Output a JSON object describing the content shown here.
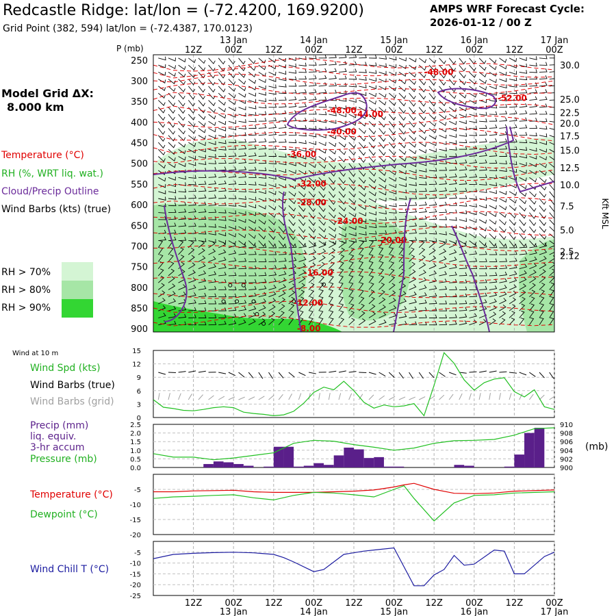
{
  "header": {
    "title": "Redcastle Ridge:  lat/lon = (-72.4200, 169.9200)",
    "grid_point": "Grid Point (382, 594) lat/lon = (-72.4387, 170.0123)",
    "cycle_line1": "AMPS WRF Forecast Cycle:",
    "cycle_line2": "2026-01-12 / 00  Z"
  },
  "model_grid": {
    "line1": "Model Grid ΔX:",
    "line2": "8.000 km"
  },
  "legend": {
    "temperature": "Temperature (°C)",
    "rh": "RH (%, WRT liq. wat.)",
    "cloud": "Cloud/Precip Outline",
    "wind_barbs": "Wind Barbs (kts) (true)",
    "rh70": "RH > 70%",
    "rh80": "RH > 80%",
    "rh90": "RH > 90%"
  },
  "colors": {
    "temperature": "#e00000",
    "rh": "#20c020",
    "cloud": "#6a2a9a",
    "barbs": "#000000",
    "barbs_grid": "#a0a0a0",
    "windchill": "#1a1aa0",
    "rh70": "#d4f5d4",
    "rh80": "#a6e6a6",
    "rh90": "#33d633",
    "grid": "#b0b0b0",
    "precip": "#5a1f8a"
  },
  "time_axis": {
    "labels": [
      "12Z",
      "00Z",
      "12Z",
      "00Z",
      "12Z",
      "00Z",
      "12Z",
      "00Z",
      "12Z",
      "00Z"
    ],
    "label_hours": [
      12,
      24,
      36,
      48,
      60,
      72,
      84,
      96,
      108,
      120
    ],
    "dates": [
      "13 Jan",
      "14 Jan",
      "15 Jan",
      "16 Jan",
      "17 Jan"
    ],
    "date_hours": [
      24,
      48,
      72,
      96,
      120
    ]
  },
  "chart_data": [
    {
      "type": "line",
      "panel": "cross-section",
      "title": "",
      "ylabel": "P (mb)",
      "ylabel_right": "Kft MSL",
      "y_ticks_left": [
        "250",
        "300",
        "350",
        "400",
        "450",
        "500",
        "550",
        "600",
        "650",
        "700",
        "750",
        "800",
        "850",
        "900"
      ],
      "y_ticks_left_values": [
        250,
        300,
        350,
        400,
        450,
        500,
        550,
        600,
        650,
        700,
        750,
        800,
        850,
        900
      ],
      "y_ticks_right": [
        "30.0",
        "25.0",
        "22.5",
        "20.0",
        "17.5",
        "15.0",
        "12.5",
        "10.0",
        "7.5",
        "5.0",
        "2.5",
        "2.12"
      ],
      "y_ticks_right_pressure": [
        262,
        345,
        377,
        403,
        433,
        468,
        510,
        552,
        603,
        661,
        713,
        723
      ],
      "x_range_hours": [
        0,
        120
      ],
      "pressure_range_mb": [
        237,
        908
      ],
      "temp_contours": [
        {
          "label": "-48.00",
          "hour": 81,
          "p": 279
        },
        {
          "label": "-52.00",
          "hour": 103,
          "p": 342
        },
        {
          "label": "-48.00",
          "hour": 52,
          "p": 372
        },
        {
          "label": "-44.00",
          "hour": 60,
          "p": 381
        },
        {
          "label": "-40.00",
          "hour": 52,
          "p": 423
        },
        {
          "label": "-36.00",
          "hour": 40,
          "p": 478
        },
        {
          "label": "-32.00",
          "hour": 43,
          "p": 549
        },
        {
          "label": "-28.00",
          "hour": 43,
          "p": 595
        },
        {
          "label": "-24.00",
          "hour": 54,
          "p": 640
        },
        {
          "label": "-20.00",
          "hour": 67,
          "p": 686
        },
        {
          "label": "-16.00",
          "hour": 45,
          "p": 765
        },
        {
          "label": "-12.00",
          "hour": 42,
          "p": 838
        },
        {
          "label": "-8.00",
          "hour": 43,
          "p": 900
        }
      ]
    },
    {
      "type": "line",
      "panel": "wind-10m",
      "title": "Wind at 10 m",
      "series_labels": [
        "Wind Spd (kts)",
        "Wind Barbs (true)",
        "Wind Barbs (grid)"
      ],
      "ylim": [
        0,
        15
      ],
      "y_ticks": [
        "0",
        "3",
        "6",
        "9",
        "12",
        "15"
      ],
      "x": [
        0,
        3,
        6,
        9,
        12,
        15,
        18,
        21,
        24,
        27,
        30,
        33,
        36,
        39,
        42,
        45,
        48,
        51,
        54,
        57,
        60,
        63,
        66,
        69,
        72,
        75,
        78,
        81,
        84,
        87,
        90,
        93,
        96,
        99,
        102,
        105,
        108,
        111,
        114,
        117,
        120
      ],
      "values": [
        4,
        2.5,
        2,
        1.5,
        1.5,
        2,
        2,
        2,
        1.8,
        1,
        1,
        1,
        0.5,
        0.5,
        1,
        3,
        6,
        7,
        6,
        8.2,
        6,
        3,
        2,
        3,
        2,
        2.5,
        3,
        0.5,
        7,
        14.5,
        12,
        8,
        6,
        8,
        8,
        9,
        6,
        5,
        6,
        2,
        2
      ],
      "values_plot": [
        4,
        2.3,
        2,
        1.6,
        1.5,
        1.8,
        2.2,
        2.4,
        2.2,
        1.2,
        0.9,
        0.7,
        0.4,
        0.6,
        1.4,
        3.2,
        5.6,
        6.8,
        6.2,
        8.1,
        6.0,
        3.4,
        2.1,
        2.8,
        2.4,
        2.6,
        3.1,
        0.4,
        7.2,
        14.5,
        12.1,
        8.4,
        6.1,
        7.8,
        8.6,
        8.9,
        5.8,
        4.6,
        6.2,
        2.4,
        1.8
      ]
    },
    {
      "type": "bar",
      "panel": "precip-pressure",
      "series_labels": [
        "Precip (mm)",
        "liq. equiv.",
        "3-hr accum",
        "Pressure (mb)"
      ],
      "ylim": [
        0,
        2.5
      ],
      "y_ticks": [
        "0.0",
        "0.5",
        "1.0",
        "1.5",
        "2.0",
        "2.5"
      ],
      "ylim_right": [
        900,
        910
      ],
      "y_ticks_right": [
        "900",
        "902",
        "904",
        "906",
        "908",
        "910"
      ],
      "ylabel_right": "(mb)",
      "bar_hours": [
        18,
        21,
        24,
        27,
        30,
        36,
        39,
        42,
        45,
        48,
        51,
        54,
        57,
        60,
        63,
        66,
        69,
        72,
        75,
        93,
        96,
        108,
        111,
        114,
        117
      ],
      "bar_values": [
        0.2,
        0.35,
        0.3,
        0.2,
        0.1,
        0.05,
        1.2,
        1.2,
        0.05,
        0.1,
        0.25,
        0.15,
        0.7,
        1.15,
        1.05,
        0.55,
        0.6,
        0.05,
        0.05,
        0.15,
        0.1,
        0.05,
        0.75,
        2.0,
        2.3
      ],
      "pressure_hours": [
        0,
        6,
        12,
        18,
        24,
        30,
        36,
        42,
        48,
        54,
        60,
        66,
        72,
        78,
        84,
        90,
        96,
        102,
        108,
        114,
        120
      ],
      "pressure_values": [
        903.2,
        902.4,
        902.4,
        901.8,
        902.2,
        902.8,
        903.4,
        905.6,
        906.3,
        906.1,
        905.3,
        904.7,
        904.0,
        904.5,
        905.6,
        906.2,
        906.3,
        906.5,
        907.5,
        909.0,
        909.2
      ]
    },
    {
      "type": "line",
      "panel": "temperature",
      "series": [
        {
          "name": "Temperature (°C)",
          "color": "#e00000",
          "values": [
            -5.8,
            -5.8,
            -5.5,
            -5.4,
            -5.3,
            -5.8,
            -6.0,
            -6.0,
            -6.0,
            -5.8,
            -5.6,
            -5.2,
            -4.2,
            -3.5,
            -3.0,
            -5.0,
            -6.3,
            -6.4,
            -6.2,
            -5.6,
            -5.2
          ]
        },
        {
          "name": "Dewpoint (°C)",
          "color": "#20c020",
          "values": [
            -8.0,
            -7.5,
            -7.3,
            -7.0,
            -6.8,
            -7.8,
            -8.5,
            -7.0,
            -6.0,
            -6.2,
            -6.8,
            -7.5,
            -5.0,
            -3.8,
            -8.0,
            -15.5,
            -9.5,
            -7.0,
            -6.8,
            -6.2,
            -5.8
          ]
        }
      ],
      "x": [
        0,
        6,
        12,
        18,
        24,
        30,
        36,
        42,
        48,
        54,
        60,
        66,
        72,
        75,
        78,
        84,
        90,
        96,
        102,
        108,
        120
      ],
      "ylim": [
        -20,
        0
      ],
      "y_ticks": [
        "-20",
        "-15",
        "-10",
        "-5"
      ]
    },
    {
      "type": "line",
      "panel": "windchill",
      "series": [
        {
          "name": "Wind Chill T (°C)",
          "color": "#1a1aa0",
          "values": [
            -8,
            -6,
            -5.5,
            -5.2,
            -5.0,
            -5.3,
            -6.0,
            -7.5,
            -9.5,
            -14,
            -13,
            -6,
            -4.5,
            -4,
            -3,
            -20.5,
            -20.5,
            -15.5,
            -13,
            -6.5,
            -11,
            -10.5,
            -4,
            -4.5,
            -15,
            -15,
            -7,
            -5
          ]
        }
      ],
      "x": [
        0,
        6,
        12,
        18,
        24,
        30,
        36,
        39,
        42,
        48,
        51,
        57,
        63,
        66,
        72,
        78,
        81,
        84,
        87,
        90,
        93,
        96,
        102,
        105,
        108,
        111,
        117,
        120
      ],
      "ylim": [
        -25,
        0
      ],
      "y_ticks": [
        "-25",
        "-20",
        "-15",
        "-10",
        "-5"
      ]
    }
  ]
}
